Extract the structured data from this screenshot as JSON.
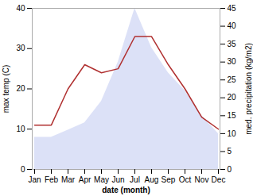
{
  "chart_data": {
    "type": "line",
    "xlabel": "date (month)",
    "ylabel": "max temp (C)",
    "y2label": "med. precipitation (kg/m2)",
    "categories": [
      "Jan",
      "Feb",
      "Mar",
      "Apr",
      "May",
      "Jun",
      "Jul",
      "Aug",
      "Sep",
      "Oct",
      "Nov",
      "Dec"
    ],
    "series": [
      {
        "type": "area",
        "axis": "y2",
        "color": "#c0c8f0",
        "values": [
          9,
          9,
          11,
          13,
          19,
          30,
          45,
          34,
          27,
          22,
          15,
          10
        ]
      },
      {
        "type": "line",
        "color": "#b03030",
        "values": [
          11,
          11,
          20,
          26,
          24,
          25,
          33,
          33,
          26,
          20,
          13,
          10
        ]
      }
    ],
    "ylim": [
      0,
      40
    ],
    "yticks": [
      0,
      10,
      20,
      30,
      40
    ],
    "y2lim": [
      0,
      45
    ],
    "y2ticks": [
      0,
      5,
      10,
      15,
      20,
      25,
      30,
      35,
      40,
      45
    ],
    "grid": false
  }
}
